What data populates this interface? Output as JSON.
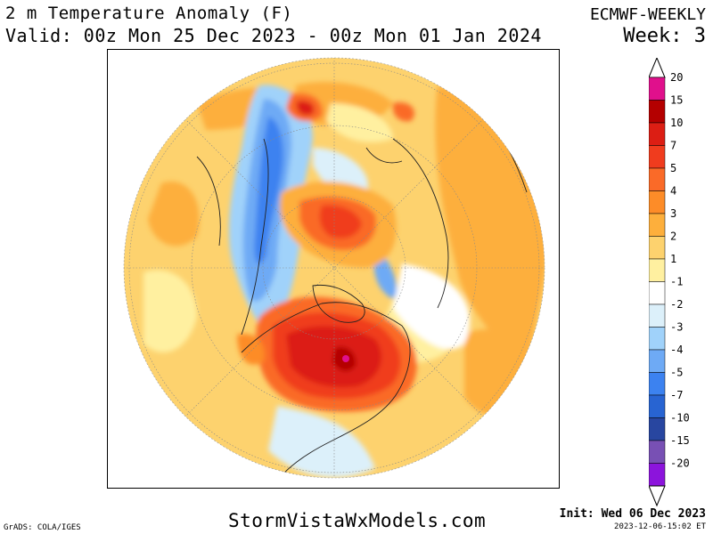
{
  "header": {
    "title": "2 m Temperature Anomaly (F)",
    "valid": "Valid: 00z Mon 25 Dec 2023 - 00z Mon 01 Jan 2024",
    "model": "ECMWF-WEEKLY",
    "week": "Week: 3"
  },
  "footer": {
    "watermark": "StormVistaWxModels.com",
    "init": "Init: Wed 06 Dec 2023",
    "timestamp": "2023-12-06-15:02 ET",
    "credit": "GrADS: COLA/IGES"
  },
  "colorbar": {
    "levels": [
      {
        "label": "20",
        "color": "#e0108c"
      },
      {
        "label": "15",
        "color": "#b40000"
      },
      {
        "label": "10",
        "color": "#dc1e14"
      },
      {
        "label": "7",
        "color": "#f03c1e"
      },
      {
        "label": "5",
        "color": "#fa6a28"
      },
      {
        "label": "4",
        "color": "#fd8c28"
      },
      {
        "label": "3",
        "color": "#fdaf3c"
      },
      {
        "label": "2",
        "color": "#fdd26e"
      },
      {
        "label": "1",
        "color": "#fff0a0"
      },
      {
        "label": "-1",
        "color": "#ffffff"
      },
      {
        "label": "-2",
        "color": "#dcf0fa"
      },
      {
        "label": "-3",
        "color": "#a0d2fa"
      },
      {
        "label": "-4",
        "color": "#6eaaf5"
      },
      {
        "label": "-5",
        "color": "#3c82f0"
      },
      {
        "label": "-7",
        "color": "#2864d2"
      },
      {
        "label": "-10",
        "color": "#2846a0"
      },
      {
        "label": "-15",
        "color": "#7850b4"
      },
      {
        "label": "-20",
        "color": "#8c14dc"
      }
    ],
    "top_color": "#e0108c",
    "bottom_color": "#9600dc"
  }
}
